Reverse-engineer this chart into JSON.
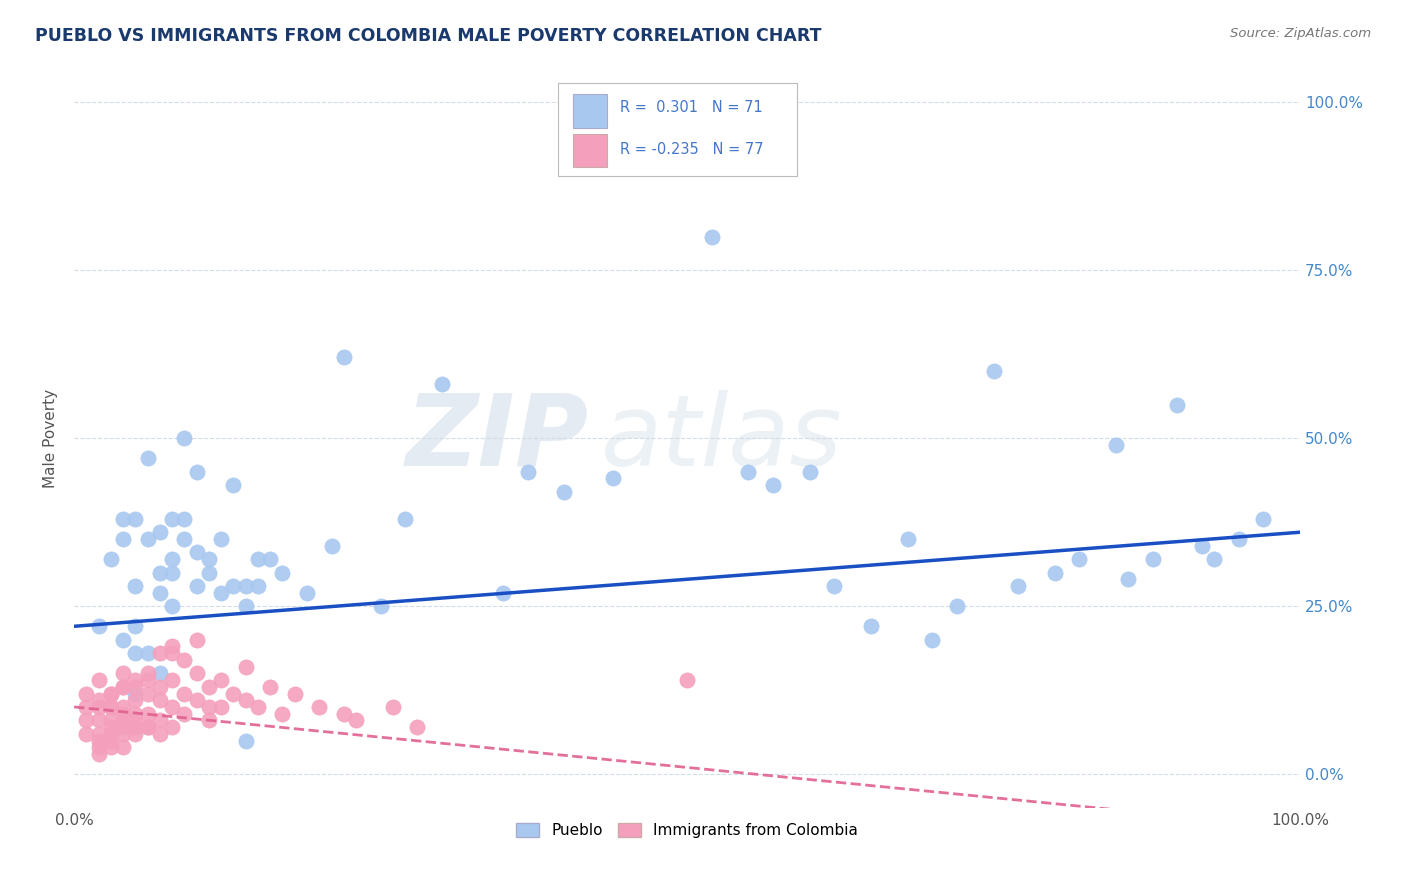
{
  "title": "PUEBLO VS IMMIGRANTS FROM COLOMBIA MALE POVERTY CORRELATION CHART",
  "source": "Source: ZipAtlas.com",
  "ylabel": "Male Poverty",
  "watermark": "ZIPatlas",
  "legend_label1": "Pueblo",
  "legend_label2": "Immigrants from Colombia",
  "r1": 0.301,
  "n1": 71,
  "r2": -0.235,
  "n2": 77,
  "pueblo_color": "#a8c8f0",
  "colombia_color": "#f4a0bc",
  "pueblo_line_color": "#1a4fc4",
  "colombia_line_color": "#e06090",
  "background_color": "#ffffff",
  "grid_color": "#c8d4e0",
  "title_color": "#1a3a6e",
  "right_label_color": "#4488cc",
  "pueblo_x": [
    0.02,
    0.03,
    0.04,
    0.04,
    0.04,
    0.05,
    0.05,
    0.05,
    0.05,
    0.06,
    0.06,
    0.07,
    0.07,
    0.07,
    0.08,
    0.08,
    0.08,
    0.09,
    0.09,
    0.1,
    0.1,
    0.11,
    0.11,
    0.12,
    0.12,
    0.13,
    0.14,
    0.14,
    0.15,
    0.15,
    0.16,
    0.17,
    0.19,
    0.21,
    0.22,
    0.25,
    0.27,
    0.3,
    0.35,
    0.37,
    0.4,
    0.44,
    0.52,
    0.55,
    0.57,
    0.6,
    0.62,
    0.65,
    0.68,
    0.7,
    0.72,
    0.75,
    0.77,
    0.8,
    0.82,
    0.85,
    0.86,
    0.88,
    0.9,
    0.92,
    0.93,
    0.95,
    0.97,
    0.14,
    0.05,
    0.07,
    0.08,
    0.1,
    0.09,
    0.06,
    0.13
  ],
  "pueblo_y": [
    0.22,
    0.32,
    0.2,
    0.35,
    0.38,
    0.28,
    0.22,
    0.18,
    0.38,
    0.35,
    0.18,
    0.3,
    0.27,
    0.36,
    0.32,
    0.25,
    0.3,
    0.38,
    0.35,
    0.33,
    0.28,
    0.32,
    0.3,
    0.35,
    0.27,
    0.28,
    0.28,
    0.25,
    0.32,
    0.28,
    0.32,
    0.3,
    0.27,
    0.34,
    0.62,
    0.25,
    0.38,
    0.58,
    0.27,
    0.45,
    0.42,
    0.44,
    0.8,
    0.45,
    0.43,
    0.45,
    0.28,
    0.22,
    0.35,
    0.2,
    0.25,
    0.6,
    0.28,
    0.3,
    0.32,
    0.49,
    0.29,
    0.32,
    0.55,
    0.34,
    0.32,
    0.35,
    0.38,
    0.05,
    0.12,
    0.15,
    0.38,
    0.45,
    0.5,
    0.47,
    0.43
  ],
  "colombia_x": [
    0.01,
    0.01,
    0.01,
    0.01,
    0.02,
    0.02,
    0.02,
    0.02,
    0.02,
    0.02,
    0.02,
    0.03,
    0.03,
    0.03,
    0.03,
    0.03,
    0.03,
    0.03,
    0.04,
    0.04,
    0.04,
    0.04,
    0.04,
    0.04,
    0.04,
    0.05,
    0.05,
    0.05,
    0.05,
    0.05,
    0.06,
    0.06,
    0.06,
    0.06,
    0.07,
    0.07,
    0.07,
    0.08,
    0.08,
    0.08,
    0.08,
    0.09,
    0.09,
    0.1,
    0.1,
    0.11,
    0.11,
    0.11,
    0.12,
    0.12,
    0.13,
    0.14,
    0.15,
    0.16,
    0.17,
    0.18,
    0.2,
    0.22,
    0.23,
    0.26,
    0.28,
    0.5,
    0.14,
    0.1,
    0.08,
    0.09,
    0.07,
    0.06,
    0.05,
    0.04,
    0.03,
    0.02,
    0.03,
    0.04,
    0.05,
    0.06,
    0.07
  ],
  "colombia_y": [
    0.08,
    0.1,
    0.12,
    0.06,
    0.14,
    0.1,
    0.08,
    0.06,
    0.05,
    0.04,
    0.03,
    0.12,
    0.1,
    0.08,
    0.07,
    0.06,
    0.05,
    0.04,
    0.15,
    0.13,
    0.1,
    0.08,
    0.07,
    0.06,
    0.04,
    0.13,
    0.11,
    0.09,
    0.07,
    0.06,
    0.14,
    0.12,
    0.09,
    0.07,
    0.13,
    0.11,
    0.08,
    0.18,
    0.14,
    0.1,
    0.07,
    0.12,
    0.09,
    0.15,
    0.11,
    0.13,
    0.1,
    0.08,
    0.14,
    0.1,
    0.12,
    0.11,
    0.1,
    0.13,
    0.09,
    0.12,
    0.1,
    0.09,
    0.08,
    0.1,
    0.07,
    0.14,
    0.16,
    0.2,
    0.19,
    0.17,
    0.18,
    0.15,
    0.14,
    0.13,
    0.12,
    0.11,
    0.1,
    0.09,
    0.08,
    0.07,
    0.06
  ],
  "x_ticks": [
    0.0,
    1.0
  ],
  "x_labels": [
    "0.0%",
    "100.0%"
  ],
  "y_ticks": [
    0.0,
    0.25,
    0.5,
    0.75,
    1.0
  ],
  "y_labels": [
    "0.0%",
    "25.0%",
    "50.0%",
    "75.0%",
    "100.0%"
  ],
  "xlim": [
    0,
    1
  ],
  "ylim": [
    -0.05,
    1.05
  ]
}
